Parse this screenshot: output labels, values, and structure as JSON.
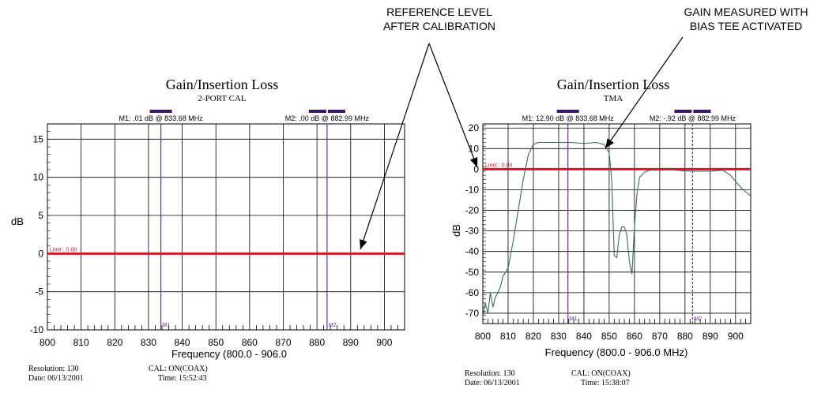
{
  "callouts": {
    "reference_line1": "REFERENCE LEVEL",
    "reference_line2": "AFTER CALIBRATION",
    "gain_line1": "GAIN MEASURED WITH",
    "gain_line2": "BIAS TEE ACTIVATED"
  },
  "colors": {
    "limit": "#d11a2a",
    "marker": "#6a2fa0",
    "marker_bar": "#3a1466",
    "trace": "#3f6b56",
    "grid": "#000000"
  },
  "chart_data": [
    {
      "type": "line",
      "title": "Gain/Insertion Loss",
      "subtitle": "2-PORT CAL",
      "xlabel": "Frequency (800.0 - 906.0",
      "ylabel": "dB",
      "xlim": [
        800,
        906
      ],
      "ylim": [
        -10,
        17
      ],
      "x_ticks": [
        800,
        810,
        820,
        830,
        840,
        850,
        860,
        870,
        880,
        890,
        900
      ],
      "y_ticks": [
        -10,
        -5,
        0,
        5,
        10,
        15
      ],
      "grid": true,
      "limit": {
        "label": "Limit : 0.00",
        "value": 0
      },
      "markers": [
        {
          "name": "M1",
          "x": 833.68,
          "readout": "M1: .01 dB @ 833.68 MHz"
        },
        {
          "name": "M2",
          "x": 882.99,
          "readout": "M2: .00 dB @ 882.99 MHz"
        }
      ],
      "series": [
        {
          "x": [
            800,
            906
          ],
          "values": [
            0,
            0
          ]
        }
      ],
      "footer": {
        "resolution": "Resolution: 130",
        "date": "Date: 06/13/2001",
        "cal": "CAL: ON(COAX)",
        "time": "Time: 15:52:43"
      }
    },
    {
      "type": "line",
      "title": "Gain/Insertion Loss",
      "subtitle": "TMA",
      "xlabel": "Frequency (800.0 - 906.0 MHz)",
      "ylabel": "dB",
      "xlim": [
        800,
        906
      ],
      "ylim": [
        -75,
        22
      ],
      "x_ticks": [
        800,
        810,
        820,
        830,
        840,
        850,
        860,
        870,
        880,
        890,
        900
      ],
      "y_ticks": [
        -70,
        -60,
        -50,
        -40,
        -30,
        -20,
        -10,
        0,
        10,
        20
      ],
      "grid": true,
      "limit": {
        "label": "Limit : 0.00",
        "value": 0
      },
      "markers": [
        {
          "name": "M1",
          "x": 833.68,
          "readout": "M1: 12.90 dB @ 833.68 MHz"
        },
        {
          "name": "M2",
          "x": 882.99,
          "readout": "M2: -.92 dB @ 882.99 MHz"
        }
      ],
      "series": [
        {
          "x": [
            800,
            801,
            802,
            803,
            804,
            805,
            806,
            807,
            808,
            809,
            810,
            812,
            814,
            816,
            818,
            820,
            822,
            825,
            830,
            835,
            840,
            845,
            848,
            850,
            851,
            852,
            853,
            854,
            855,
            856,
            857,
            858,
            859,
            860,
            861,
            862,
            864,
            866,
            868,
            870,
            875,
            880,
            885,
            890,
            895,
            898,
            900,
            903,
            906
          ],
          "values": [
            -72,
            -65,
            -70,
            -60,
            -67,
            -62,
            -60,
            -57,
            -52,
            -50,
            -48,
            -35,
            -20,
            -5,
            7,
            12,
            13,
            13,
            13,
            13,
            12.5,
            13,
            12,
            8,
            -5,
            -42,
            -43,
            -32,
            -28,
            -28,
            -32,
            -45,
            -51,
            -28,
            -12,
            -4,
            -1.5,
            -0.5,
            -0.5,
            -0.5,
            -0.3,
            -0.9,
            -1,
            -1,
            -0.5,
            -3,
            -6,
            -10,
            -13
          ]
        }
      ],
      "footer": {
        "resolution": "Resolution: 130",
        "date": "Date: 06/13/2001",
        "cal": "CAL: ON(COAX)",
        "time": "Time: 15:38:07"
      }
    }
  ]
}
